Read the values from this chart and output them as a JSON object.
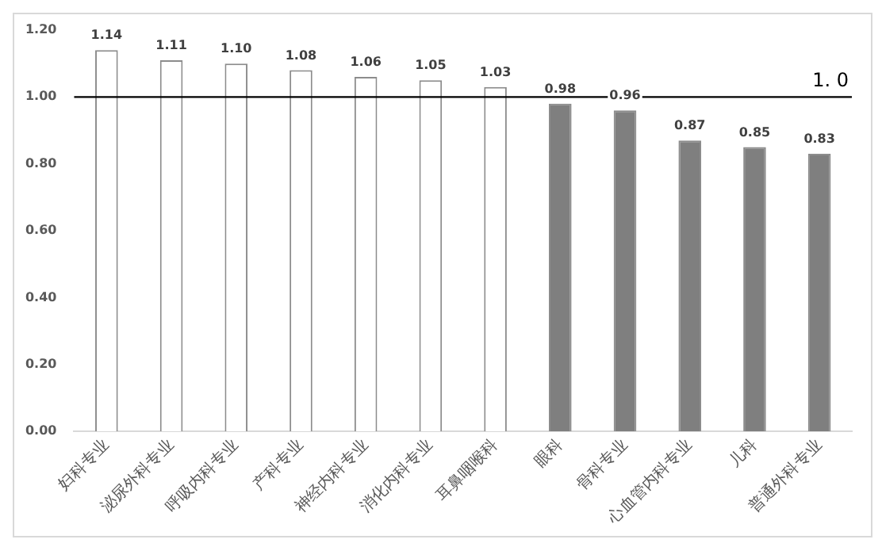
{
  "chart_data": {
    "type": "bar",
    "categories": [
      "妇科专业",
      "泌尿外科专业",
      "呼吸内科专业",
      "产科专业",
      "神经内科专业",
      "消化内科专业",
      "耳鼻咽喉科",
      "眼科",
      "骨科专业",
      "心血管内科专业",
      "儿科",
      "普通外科专业"
    ],
    "values": [
      1.14,
      1.11,
      1.1,
      1.08,
      1.06,
      1.05,
      1.03,
      0.98,
      0.96,
      0.87,
      0.85,
      0.83
    ],
    "value_labels": [
      "1.14",
      "1.11",
      "1.10",
      "1.08",
      "1.06",
      "1.05",
      "1.03",
      "0.98",
      "0.96",
      "0.87",
      "0.85",
      "0.83"
    ],
    "colors": [
      "#ffffff",
      "#ffffff",
      "#ffffff",
      "#ffffff",
      "#ffffff",
      "#ffffff",
      "#ffffff",
      "#7f7f7f",
      "#7f7f7f",
      "#7f7f7f",
      "#7f7f7f",
      "#7f7f7f"
    ],
    "ylim": [
      0,
      1.2
    ],
    "yticks": [
      {
        "value": 0,
        "label": "0.00"
      },
      {
        "value": 0.2,
        "label": "0.20"
      },
      {
        "value": 0.4,
        "label": "0.40"
      },
      {
        "value": 0.6,
        "label": "0.60"
      },
      {
        "value": 0.8,
        "label": "0.80"
      },
      {
        "value": 1,
        "label": "1.00"
      },
      {
        "value": 1.2,
        "label": "1.20"
      }
    ],
    "ref_lines": [
      {
        "axis": "y",
        "value": 1,
        "label": "1. 0",
        "color": "#000000"
      }
    ],
    "grid": false,
    "legend": false
  }
}
